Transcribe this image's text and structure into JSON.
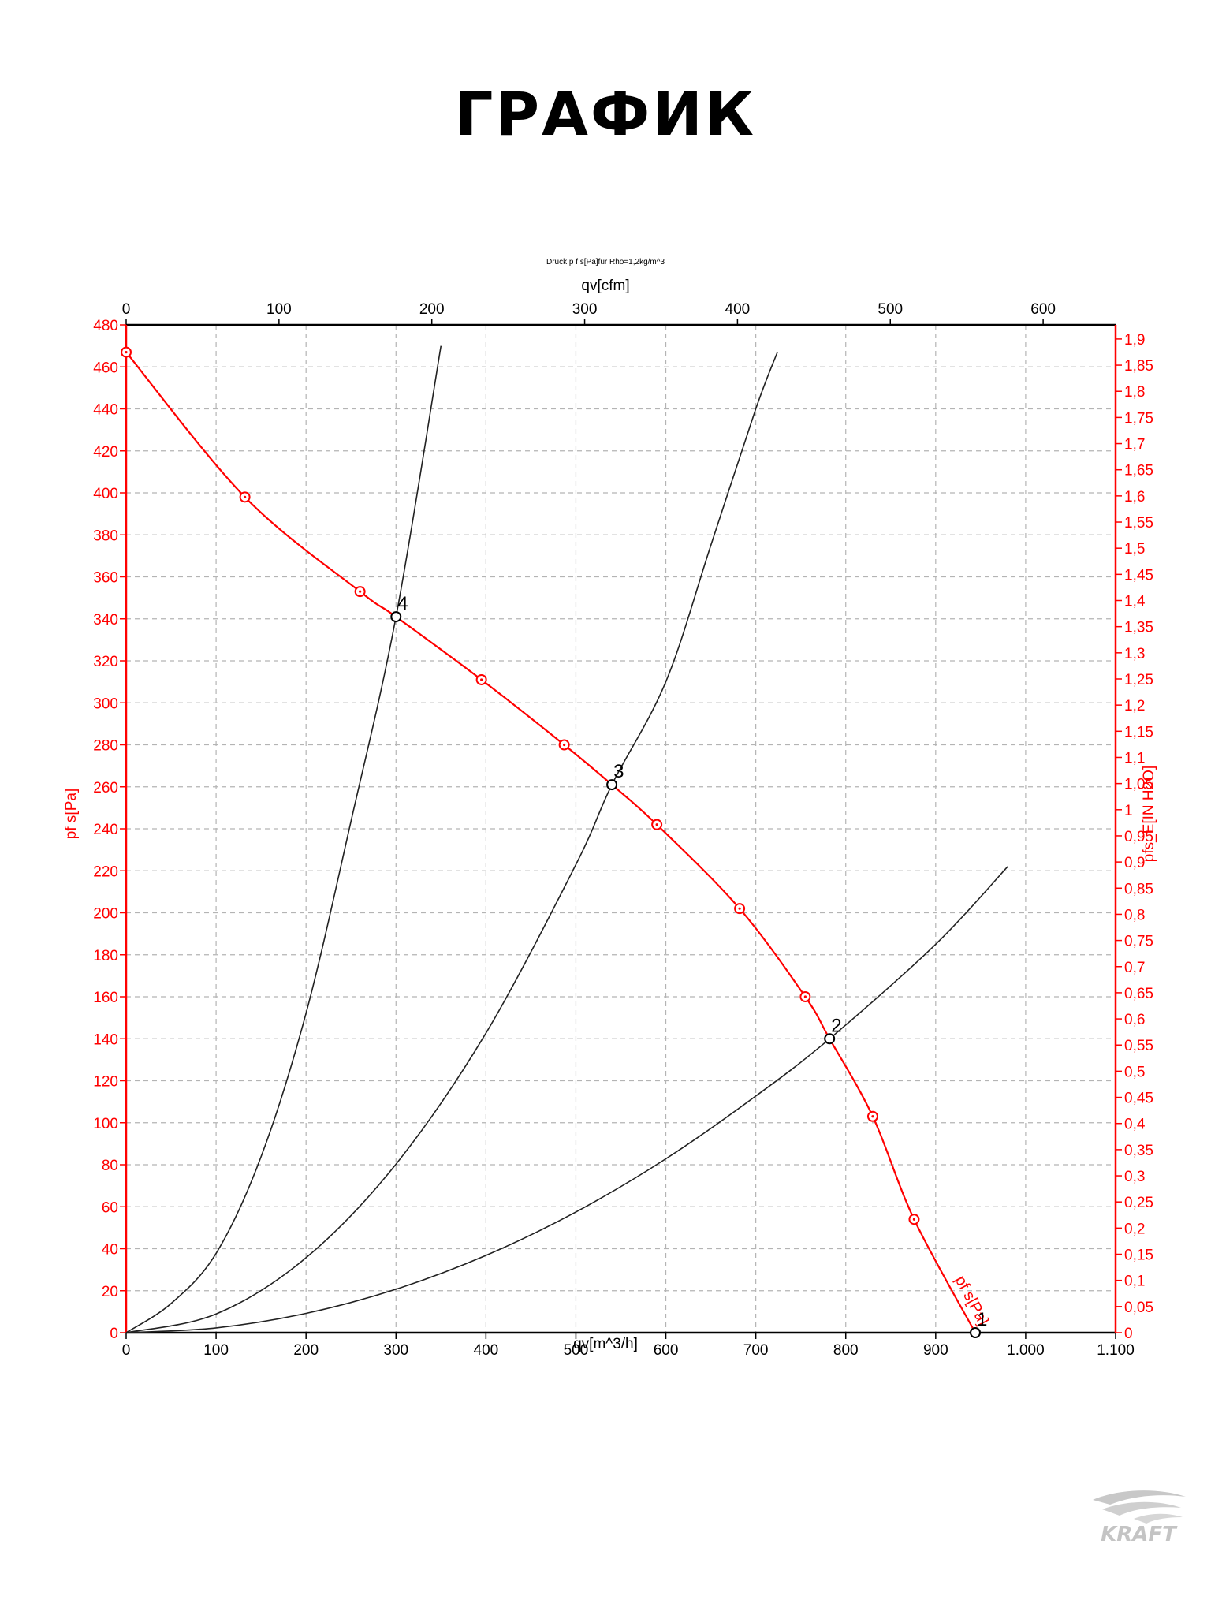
{
  "page": {
    "title": "ГРАФИК"
  },
  "brand": {
    "name": "KRAFT"
  },
  "colors": {
    "fan_curve": "#ff0000",
    "system_curves": "#222222",
    "axis_red": "#ff0000",
    "grid": "#b4b4b4"
  },
  "chart_data": {
    "type": "line",
    "title": "Druck p f s[Pa]für Rho=1,2kg/m^3",
    "xlabel": "qv[m^3/h]",
    "ylabel": "pf s[Pa]",
    "x_top_label": "qv[cfm]",
    "y_right_label": "pfs_E[IN H2O]",
    "xlim": [
      0,
      1100
    ],
    "ylim": [
      0,
      480
    ],
    "x_top_lim_cfm": [
      0,
      647.4
    ],
    "y_right_lim": [
      0,
      1.927
    ],
    "grid": true,
    "x_ticks": [
      "0",
      "100",
      "200",
      "300",
      "400",
      "500",
      "600",
      "700",
      "800",
      "900",
      "1.000",
      "1.100"
    ],
    "y_ticks": [
      "0",
      "20",
      "40",
      "60",
      "80",
      "100",
      "120",
      "140",
      "160",
      "180",
      "200",
      "220",
      "240",
      "260",
      "280",
      "300",
      "320",
      "340",
      "360",
      "380",
      "400",
      "420",
      "440",
      "460",
      "480"
    ],
    "x_top_ticks": [
      "0",
      "100",
      "200",
      "300",
      "400",
      "500",
      "600"
    ],
    "y_right_ticks": [
      "0",
      "0,05",
      "0,1",
      "0,15",
      "0,2",
      "0,25",
      "0,3",
      "0,35",
      "0,4",
      "0,45",
      "0,5",
      "0,55",
      "0,6",
      "0,65",
      "0,7",
      "0,75",
      "0,8",
      "0,85",
      "0,9",
      "0,95",
      "1",
      "1,05",
      "1,1",
      "1,15",
      "1,2",
      "1,25",
      "1,3",
      "1,35",
      "1,4",
      "1,45",
      "1,5",
      "1,55",
      "1,6",
      "1,65",
      "1,7",
      "1,75",
      "1,8",
      "1,85",
      "1,9"
    ],
    "fan_curve": {
      "name": "pf s[Pa]",
      "x": [
        0,
        132,
        260,
        300,
        395,
        487,
        540,
        590,
        682,
        755,
        782,
        830,
        876,
        944
      ],
      "y": [
        467,
        398,
        353,
        341,
        311,
        280,
        261,
        242,
        202,
        160,
        140,
        103,
        54,
        0
      ]
    },
    "fan_markers": {
      "x": [
        0,
        132,
        260,
        395,
        487,
        590,
        682,
        755,
        830,
        876
      ],
      "y": [
        467,
        398,
        353,
        311,
        280,
        242,
        202,
        160,
        103,
        54
      ]
    },
    "system_curves": [
      {
        "x": [
          0,
          50,
          100,
          150,
          200,
          250,
          300,
          350
        ],
        "y": [
          0,
          13.9,
          37.8,
          83.8,
          152.2,
          243.6,
          341.0,
          470.0
        ]
      },
      {
        "x": [
          0,
          100,
          200,
          300,
          400,
          500,
          540,
          600,
          650,
          700,
          724
        ],
        "y": [
          0,
          8.9,
          35.7,
          80.3,
          142.7,
          223.0,
          261.0,
          310.0,
          375.0,
          440.0,
          467.0
        ]
      },
      {
        "x": [
          0,
          100,
          200,
          300,
          400,
          500,
          600,
          700,
          782,
          900,
          980
        ],
        "y": [
          0,
          2.3,
          9.2,
          20.7,
          36.8,
          57.5,
          82.8,
          112.7,
          140.0,
          185.0,
          222.0
        ]
      }
    ],
    "operating_points": [
      {
        "label": "1",
        "x": 944,
        "y": 0
      },
      {
        "label": "2",
        "x": 782,
        "y": 140
      },
      {
        "label": "3",
        "x": 540,
        "y": 261
      },
      {
        "label": "4",
        "x": 300,
        "y": 341
      }
    ]
  }
}
